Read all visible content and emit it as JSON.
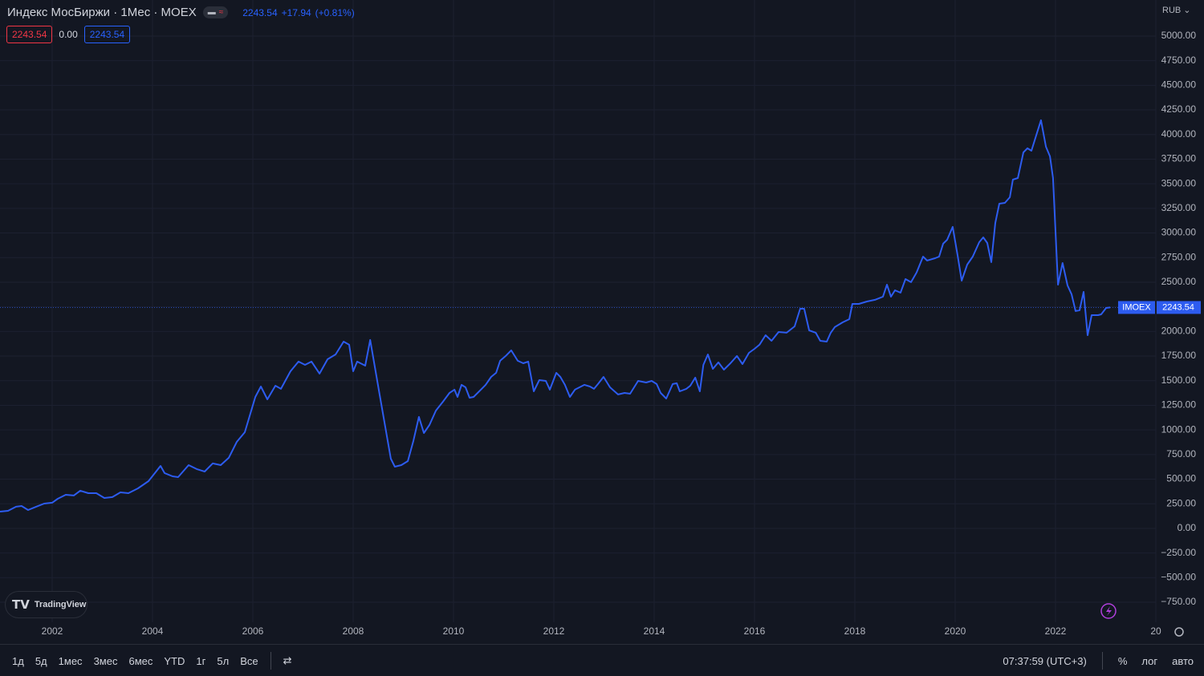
{
  "header": {
    "title": "Индекс МосБиржи · 1Мес · MOEX",
    "price": "2243.54",
    "change": "+17.94",
    "change_pct": "(+0.81%)",
    "boxes": [
      "2243.54",
      "0.00",
      "2243.54"
    ],
    "currency": "RUB",
    "logo": "TradingView"
  },
  "chart_data": {
    "type": "line",
    "x": [
      2000.96,
      2001.12,
      2001.28,
      2001.39,
      2001.52,
      2001.68,
      2001.84,
      2002.0,
      2002.11,
      2002.27,
      2002.43,
      2002.56,
      2002.72,
      2002.88,
      2003.04,
      2003.2,
      2003.36,
      2003.52,
      2003.71,
      2003.92,
      2004.16,
      2004.24,
      2004.4,
      2004.51,
      2004.72,
      2004.88,
      2005.04,
      2005.2,
      2005.36,
      2005.52,
      2005.68,
      2005.84,
      2006.05,
      2006.16,
      2006.29,
      2006.45,
      2006.56,
      2006.75,
      2006.91,
      2007.04,
      2007.17,
      2007.33,
      2007.49,
      2007.65,
      2007.81,
      2007.92,
      2008.0,
      2008.08,
      2008.24,
      2008.34,
      2008.53,
      2008.75,
      2008.83,
      2008.96,
      2009.09,
      2009.2,
      2009.31,
      2009.41,
      2009.52,
      2009.65,
      2009.79,
      2009.92,
      2010.02,
      2010.08,
      2010.16,
      2010.24,
      2010.32,
      2010.4,
      2010.53,
      2010.64,
      2010.75,
      2010.85,
      2010.93,
      2011.04,
      2011.15,
      2011.28,
      2011.39,
      2011.49,
      2011.6,
      2011.71,
      2011.84,
      2011.92,
      2012.05,
      2012.13,
      2012.22,
      2012.32,
      2012.42,
      2012.61,
      2012.72,
      2012.8,
      2012.88,
      2012.99,
      2013.12,
      2013.28,
      2013.41,
      2013.52,
      2013.68,
      2013.84,
      2013.95,
      2014.05,
      2014.13,
      2014.24,
      2014.37,
      2014.45,
      2014.51,
      2014.64,
      2014.72,
      2014.82,
      2014.91,
      2014.98,
      2015.07,
      2015.17,
      2015.28,
      2015.39,
      2015.52,
      2015.65,
      2015.76,
      2015.89,
      2016.0,
      2016.1,
      2016.22,
      2016.34,
      2016.48,
      2016.64,
      2016.8,
      2016.91,
      2016.99,
      2017.09,
      2017.22,
      2017.31,
      2017.44,
      2017.52,
      2017.6,
      2017.76,
      2017.89,
      2017.95,
      2018.08,
      2018.24,
      2018.4,
      2018.56,
      2018.64,
      2018.72,
      2018.8,
      2018.91,
      2019.01,
      2019.12,
      2019.23,
      2019.36,
      2019.44,
      2019.6,
      2019.68,
      2019.76,
      2019.84,
      2019.95,
      2020.05,
      2020.13,
      2020.24,
      2020.35,
      2020.48,
      2020.56,
      2020.64,
      2020.72,
      2020.8,
      2020.88,
      2020.99,
      2021.09,
      2021.15,
      2021.25,
      2021.36,
      2021.44,
      2021.52,
      2021.6,
      2021.71,
      2021.81,
      2021.89,
      2021.95,
      2022.05,
      2022.14,
      2022.24,
      2022.32,
      2022.4,
      2022.48,
      2022.56,
      2022.64,
      2022.72,
      2022.85,
      2022.91,
      2023.01,
      2023.09
    ],
    "series": [
      {
        "name": "IMOEX",
        "color": "#2d5cf0",
        "values": [
          171,
          179,
          220,
          228,
          187,
          220,
          252,
          261,
          301,
          342,
          334,
          383,
          358,
          358,
          309,
          318,
          366,
          358,
          407,
          480,
          635,
          562,
          529,
          521,
          643,
          603,
          578,
          660,
          643,
          717,
          879,
          977,
          1335,
          1441,
          1311,
          1449,
          1417,
          1596,
          1694,
          1661,
          1694,
          1572,
          1718,
          1767,
          1897,
          1865,
          1596,
          1694,
          1653,
          1914,
          1352,
          708,
          627,
          643,
          684,
          888,
          1132,
          969,
          1050,
          1197,
          1287,
          1376,
          1409,
          1335,
          1458,
          1433,
          1327,
          1335,
          1401,
          1458,
          1539,
          1580,
          1702,
          1751,
          1808,
          1702,
          1677,
          1694,
          1392,
          1506,
          1498,
          1409,
          1580,
          1539,
          1458,
          1335,
          1409,
          1458,
          1441,
          1417,
          1466,
          1539,
          1433,
          1360,
          1376,
          1368,
          1498,
          1482,
          1498,
          1466,
          1376,
          1319,
          1466,
          1474,
          1392,
          1417,
          1449,
          1531,
          1392,
          1661,
          1767,
          1620,
          1686,
          1612,
          1677,
          1751,
          1669,
          1783,
          1824,
          1865,
          1962,
          1905,
          1995,
          1987,
          2052,
          2231,
          2231,
          2011,
          1987,
          1905,
          1897,
          1987,
          2044,
          2093,
          2125,
          2280,
          2280,
          2304,
          2321,
          2353,
          2475,
          2353,
          2418,
          2394,
          2532,
          2500,
          2598,
          2760,
          2720,
          2744,
          2760,
          2891,
          2931,
          3062,
          2769,
          2516,
          2679,
          2760,
          2907,
          2956,
          2899,
          2704,
          3102,
          3298,
          3306,
          3363,
          3542,
          3558,
          3819,
          3860,
          3835,
          3966,
          4145,
          3876,
          3778,
          3558,
          2475,
          2695,
          2467,
          2378,
          2207,
          2215,
          2402,
          1962,
          2166,
          2166,
          2174,
          2239,
          2243.54
        ]
      }
    ],
    "price_line": 2243.54,
    "xlim": [
      2000.96,
      2024.0
    ],
    "xticks": [
      2002,
      2004,
      2006,
      2008,
      2010,
      2012,
      2014,
      2016,
      2018,
      2020,
      2022,
      {
        "value": 2024,
        "label": "20"
      }
    ],
    "ylim": [
      -1173,
      5366
    ],
    "yticks": [
      {
        "value": -750,
        "label": "−750.00"
      },
      {
        "value": -500,
        "label": "−500.00"
      },
      {
        "value": -250,
        "label": "−250.00"
      },
      {
        "value": 0,
        "label": "0.00"
      },
      {
        "value": 250,
        "label": "250.00"
      },
      {
        "value": 500,
        "label": "500.00"
      },
      {
        "value": 750,
        "label": "750.00"
      },
      {
        "value": 1000,
        "label": "1000.00"
      },
      {
        "value": 1250,
        "label": "1250.00"
      },
      {
        "value": 1500,
        "label": "1500.00"
      },
      {
        "value": 1750,
        "label": "1750.00"
      },
      {
        "value": 2000,
        "label": "2000.00"
      },
      {
        "value": 2250,
        "label": "2250.00"
      },
      {
        "value": 2500,
        "label": "2500.00"
      },
      {
        "value": 2750,
        "label": "2750.00"
      },
      {
        "value": 3000,
        "label": "3000.00"
      },
      {
        "value": 3250,
        "label": "3250.00"
      },
      {
        "value": 3500,
        "label": "3500.00"
      },
      {
        "value": 3750,
        "label": "3750.00"
      },
      {
        "value": 4000,
        "label": "4000.00"
      },
      {
        "value": 4250,
        "label": "4250.00"
      },
      {
        "value": 4500,
        "label": "4500.00"
      },
      {
        "value": 4750,
        "label": "4750.00"
      },
      {
        "value": 5000,
        "label": "5000.00"
      }
    ],
    "grid": true
  },
  "toolbar": {
    "ranges": [
      "1д",
      "5д",
      "1мес",
      "3мес",
      "6мес",
      "YTD",
      "1г",
      "5л",
      "Все"
    ],
    "time": "07:37:59 (UTC+3)",
    "options": [
      "%",
      "лог",
      "авто"
    ]
  }
}
